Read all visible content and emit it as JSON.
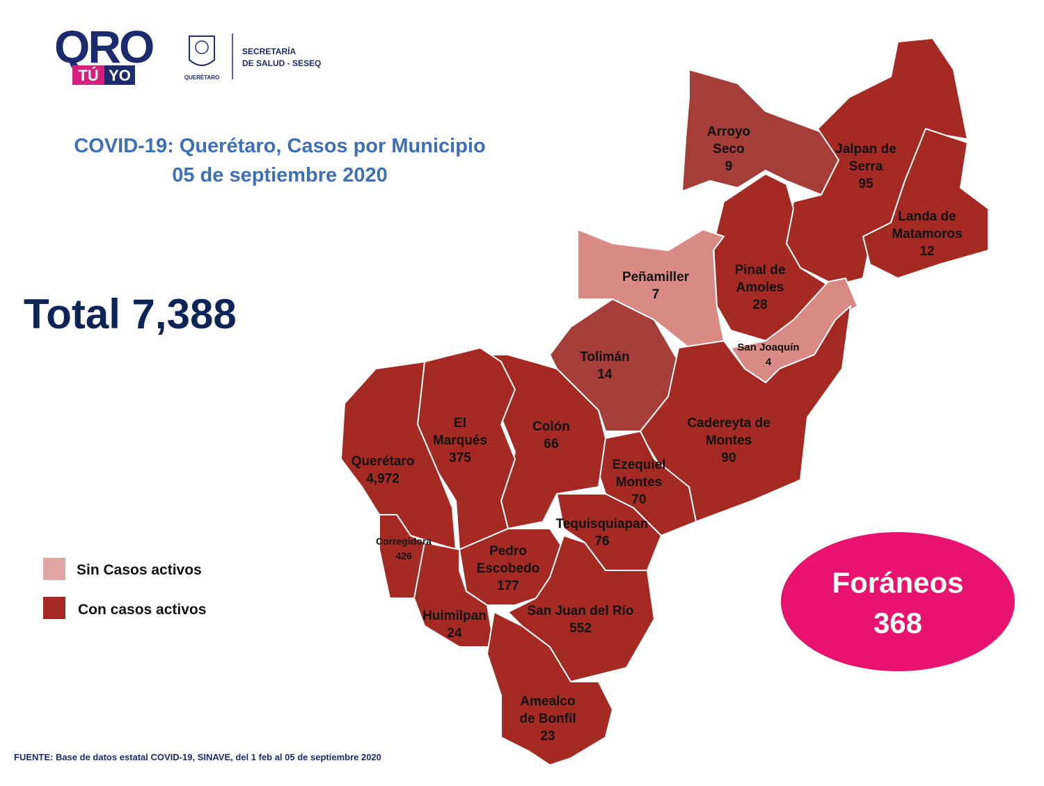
{
  "header": {
    "logo": {
      "qro": "QRO",
      "tu": "TÚ",
      "yo": "YO"
    },
    "emblem_label": "QUERÉTARO",
    "agency": [
      "SECRETARÍA",
      "DE SALUD - SESEQ"
    ]
  },
  "title": [
    "COVID-19: Querétaro, Casos por Municipio",
    "05 de septiembre 2020"
  ],
  "total": "Total 7,388",
  "municipalities": [
    {
      "name": [
        "Arroyo",
        "Seco"
      ],
      "cases": "9"
    },
    {
      "name": [
        "Jalpan de",
        "Serra"
      ],
      "cases": "95"
    },
    {
      "name": [
        "Landa de",
        "Matamoros"
      ],
      "cases": "12"
    },
    {
      "name": [
        "Pinal de",
        "Amoles"
      ],
      "cases": "28"
    },
    {
      "name": [
        "Peñamiller"
      ],
      "cases": "7"
    },
    {
      "name": [
        "San Joaquín"
      ],
      "cases": "4"
    },
    {
      "name": [
        "Tolimán"
      ],
      "cases": "14"
    },
    {
      "name": [
        "Cadereyta de",
        "Montes"
      ],
      "cases": "90"
    },
    {
      "name": [
        "Ezequiel",
        "Montes"
      ],
      "cases": "70"
    },
    {
      "name": [
        "Colón"
      ],
      "cases": "66"
    },
    {
      "name": [
        "El",
        "Marqués"
      ],
      "cases": "375"
    },
    {
      "name": [
        "Querétaro"
      ],
      "cases": "4,972"
    },
    {
      "name": [
        "Corregidora"
      ],
      "cases": "426"
    },
    {
      "name": [
        "Huimilpan"
      ],
      "cases": "24"
    },
    {
      "name": [
        "Pedro",
        "Escobedo"
      ],
      "cases": "177"
    },
    {
      "name": [
        "Tequisquiapan"
      ],
      "cases": "76"
    },
    {
      "name": [
        "San Juan del Río"
      ],
      "cases": "552"
    },
    {
      "name": [
        "Amealco",
        "de Bonfil"
      ],
      "cases": "23"
    }
  ],
  "legend": [
    "Sin Casos activos",
    "Con casos activos"
  ],
  "foraneos": {
    "label": "Foráneos",
    "cases": "368"
  },
  "source": "FUENTE: Base de datos estatal COVID-19, SINAVE, del 1 feb al 05 de septiembre 2020"
}
